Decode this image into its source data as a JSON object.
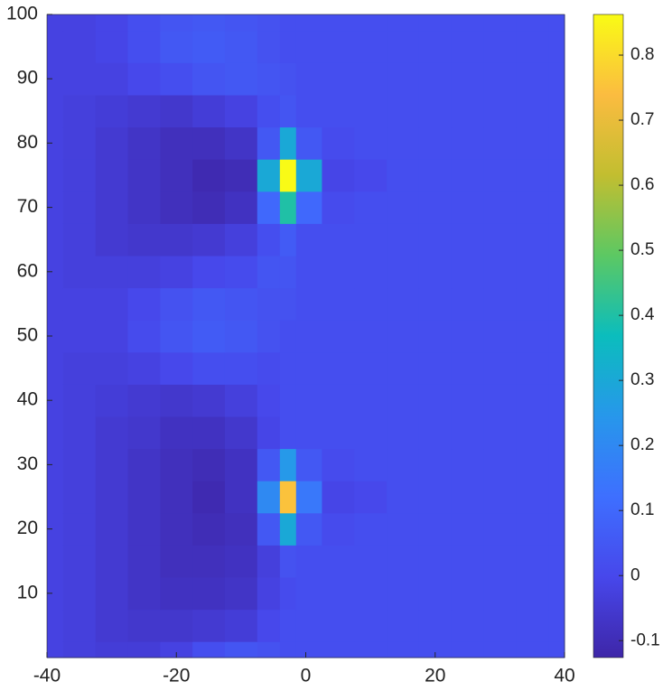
{
  "chart_data": {
    "type": "heatmap",
    "x": [
      -40,
      -35,
      -30,
      -25,
      -20,
      -15,
      -10,
      -5,
      -3,
      0,
      5,
      10,
      15,
      20,
      25,
      30,
      35,
      40
    ],
    "y": [
      0,
      5,
      10,
      15,
      20,
      25,
      30,
      35,
      40,
      45,
      50,
      55,
      60,
      65,
      70,
      75,
      80,
      85,
      90,
      95,
      100
    ],
    "z": [
      [
        -0.02,
        -0.03,
        -0.04,
        -0.04,
        -0.02,
        0.02,
        0.04,
        0.03,
        0.02,
        0.02,
        0.02,
        0.02,
        0.02,
        0.02,
        0.02,
        0.02,
        0.02,
        0.02
      ],
      [
        -0.02,
        -0.03,
        -0.05,
        -0.06,
        -0.06,
        -0.05,
        -0.04,
        0.0,
        0.02,
        0.02,
        0.02,
        0.02,
        0.02,
        0.02,
        0.02,
        0.02,
        0.02,
        0.02
      ],
      [
        -0.02,
        -0.03,
        -0.05,
        -0.07,
        -0.08,
        -0.08,
        -0.07,
        -0.02,
        0.01,
        0.02,
        0.02,
        0.02,
        0.02,
        0.02,
        0.02,
        0.02,
        0.02,
        0.02
      ],
      [
        -0.02,
        -0.03,
        -0.05,
        -0.07,
        -0.09,
        -0.09,
        -0.08,
        -0.03,
        0.03,
        0.02,
        0.02,
        0.02,
        0.02,
        0.02,
        0.02,
        0.02,
        0.02,
        0.02
      ],
      [
        -0.02,
        -0.03,
        -0.05,
        -0.07,
        -0.09,
        -0.1,
        -0.09,
        0.05,
        0.3,
        0.05,
        0.01,
        0.02,
        0.02,
        0.02,
        0.02,
        0.02,
        0.02,
        0.02
      ],
      [
        -0.02,
        -0.03,
        -0.05,
        -0.07,
        -0.09,
        -0.11,
        -0.08,
        0.2,
        0.75,
        0.15,
        -0.01,
        0.0,
        0.02,
        0.02,
        0.02,
        0.02,
        0.02,
        0.02
      ],
      [
        -0.02,
        -0.03,
        -0.05,
        -0.07,
        -0.09,
        -0.1,
        -0.08,
        0.05,
        0.25,
        0.05,
        0.01,
        0.02,
        0.02,
        0.02,
        0.02,
        0.02,
        0.02,
        0.02
      ],
      [
        -0.02,
        -0.03,
        -0.05,
        -0.06,
        -0.08,
        -0.08,
        -0.06,
        -0.01,
        0.02,
        0.02,
        0.02,
        0.02,
        0.02,
        0.02,
        0.02,
        0.02,
        0.02,
        0.02
      ],
      [
        -0.02,
        -0.03,
        -0.04,
        -0.05,
        -0.06,
        -0.05,
        -0.03,
        0.0,
        0.02,
        0.02,
        0.02,
        0.02,
        0.02,
        0.02,
        0.02,
        0.02,
        0.02,
        0.02
      ],
      [
        -0.02,
        -0.03,
        -0.03,
        -0.02,
        0.0,
        0.02,
        0.02,
        0.01,
        0.02,
        0.02,
        0.02,
        0.02,
        0.02,
        0.02,
        0.02,
        0.02,
        0.02,
        0.02
      ],
      [
        -0.02,
        -0.02,
        -0.02,
        0.01,
        0.04,
        0.06,
        0.05,
        0.03,
        0.02,
        0.02,
        0.02,
        0.02,
        0.02,
        0.02,
        0.02,
        0.02,
        0.02,
        0.02
      ],
      [
        -0.02,
        -0.02,
        -0.02,
        0.0,
        0.03,
        0.05,
        0.04,
        0.03,
        0.03,
        0.02,
        0.02,
        0.02,
        0.02,
        0.02,
        0.02,
        0.02,
        0.02,
        0.02
      ],
      [
        -0.02,
        -0.03,
        -0.03,
        -0.03,
        -0.02,
        0.0,
        0.01,
        0.04,
        0.04,
        0.02,
        0.02,
        0.02,
        0.02,
        0.02,
        0.02,
        0.02,
        0.02,
        0.02
      ],
      [
        -0.02,
        -0.03,
        -0.05,
        -0.06,
        -0.06,
        -0.05,
        -0.03,
        0.02,
        0.06,
        0.02,
        0.02,
        0.02,
        0.02,
        0.02,
        0.02,
        0.02,
        0.02,
        0.02
      ],
      [
        -0.02,
        -0.03,
        -0.05,
        -0.07,
        -0.09,
        -0.1,
        -0.08,
        0.1,
        0.4,
        0.1,
        0.01,
        0.02,
        0.02,
        0.02,
        0.02,
        0.02,
        0.02,
        0.02
      ],
      [
        -0.02,
        -0.03,
        -0.05,
        -0.07,
        -0.09,
        -0.11,
        -0.1,
        0.3,
        0.86,
        0.3,
        -0.01,
        0.0,
        0.02,
        0.02,
        0.02,
        0.02,
        0.02,
        0.02
      ],
      [
        -0.02,
        -0.03,
        -0.05,
        -0.07,
        -0.09,
        -0.09,
        -0.07,
        0.05,
        0.3,
        0.05,
        0.01,
        0.02,
        0.02,
        0.02,
        0.02,
        0.02,
        0.02,
        0.02
      ],
      [
        -0.02,
        -0.03,
        -0.04,
        -0.05,
        -0.06,
        -0.04,
        -0.02,
        0.02,
        0.04,
        0.02,
        0.02,
        0.02,
        0.02,
        0.02,
        0.02,
        0.02,
        0.02,
        0.02
      ],
      [
        -0.02,
        -0.02,
        -0.02,
        0.0,
        0.02,
        0.04,
        0.05,
        0.04,
        0.03,
        0.02,
        0.02,
        0.02,
        0.02,
        0.02,
        0.02,
        0.02,
        0.02,
        0.02
      ],
      [
        -0.02,
        -0.02,
        -0.01,
        0.02,
        0.05,
        0.06,
        0.05,
        0.03,
        0.02,
        0.02,
        0.02,
        0.02,
        0.02,
        0.02,
        0.02,
        0.02,
        0.02,
        0.02
      ],
      [
        -0.02,
        -0.02,
        -0.01,
        0.02,
        0.04,
        0.05,
        0.04,
        0.03,
        0.02,
        0.02,
        0.02,
        0.02,
        0.02,
        0.02,
        0.02,
        0.02,
        0.02,
        0.02
      ]
    ],
    "xlim": [
      -40,
      40
    ],
    "xticks": [
      -40,
      -20,
      0,
      20,
      40
    ],
    "ylim": [
      0,
      100
    ],
    "yticks": [
      10,
      20,
      30,
      40,
      50,
      60,
      70,
      80,
      90,
      100
    ],
    "clim": [
      -0.126,
      0.8625
    ],
    "cticks": [
      -0.1,
      0,
      0.1,
      0.2,
      0.3,
      0.4,
      0.5,
      0.6,
      0.7,
      0.8
    ],
    "colormap": [
      "#3e26a8",
      "#4747eb",
      "#3e6fff",
      "#2797eb",
      "#0bbdbd",
      "#5cc863",
      "#c2be30",
      "#fbbc40",
      "#f9fb15"
    ]
  }
}
